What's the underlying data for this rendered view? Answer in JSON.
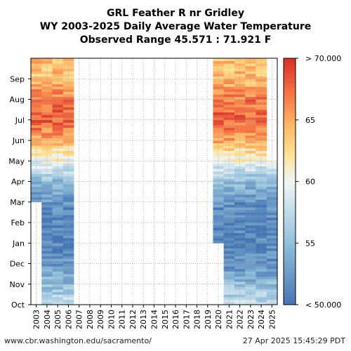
{
  "chart_data": {
    "type": "heatmap",
    "title_lines": [
      "GRL Feather R nr Gridley",
      "WY 2003-2025 Daily Average Water Temperature",
      "Observed Range 45.571 : 71.921 F"
    ],
    "x_categories": [
      "2003",
      "2004",
      "2005",
      "2006",
      "2007",
      "2008",
      "2009",
      "2010",
      "2011",
      "2012",
      "2013",
      "2014",
      "2015",
      "2016",
      "2017",
      "2018",
      "2019",
      "2020",
      "2021",
      "2022",
      "2023",
      "2024",
      "2025"
    ],
    "y_months": [
      "Oct",
      "Nov",
      "Dec",
      "Jan",
      "Feb",
      "Mar",
      "Apr",
      "May",
      "Jun",
      "Jul",
      "Aug",
      "Sep"
    ],
    "colorbar": {
      "min": 50,
      "max": 70,
      "tick_labels": [
        "< 50.000",
        "55",
        "60",
        "65",
        "> 70.000"
      ],
      "tick_values": [
        50,
        55,
        60,
        65,
        70
      ]
    },
    "years_with_data": {
      "2003": {
        "start_month": "Mar",
        "end_month": "Sep"
      },
      "2004": {
        "start_month": "Oct",
        "end_month": "Sep"
      },
      "2005": {
        "start_month": "Oct",
        "end_month": "Sep"
      },
      "2006": {
        "start_month": "Oct",
        "end_month": "Sep"
      },
      "2020": {
        "start_month": "Jan",
        "end_month": "Sep"
      },
      "2021": {
        "start_month": "Oct",
        "end_month": "Sep"
      },
      "2022": {
        "start_month": "Oct",
        "end_month": "Sep"
      },
      "2023": {
        "start_month": "Oct",
        "end_month": "Sep"
      },
      "2024": {
        "start_month": "Oct",
        "end_month": "Sep"
      },
      "2025": {
        "start_month": "Oct",
        "end_month": "Apr"
      }
    },
    "approx_monthly_mean_F": {
      "Oct": 58,
      "Nov": 55,
      "Dec": 52,
      "Jan": 51,
      "Feb": 51,
      "Mar": 52,
      "Apr": 55,
      "May": 60,
      "Jun": 65,
      "Jul": 68,
      "Aug": 67,
      "Sep": 64
    },
    "gridlines": "dotted"
  },
  "footer": {
    "source": "www.cbr.washington.edu/sacramento/",
    "timestamp": "27 Apr 2025 15:45:29 PDT"
  }
}
